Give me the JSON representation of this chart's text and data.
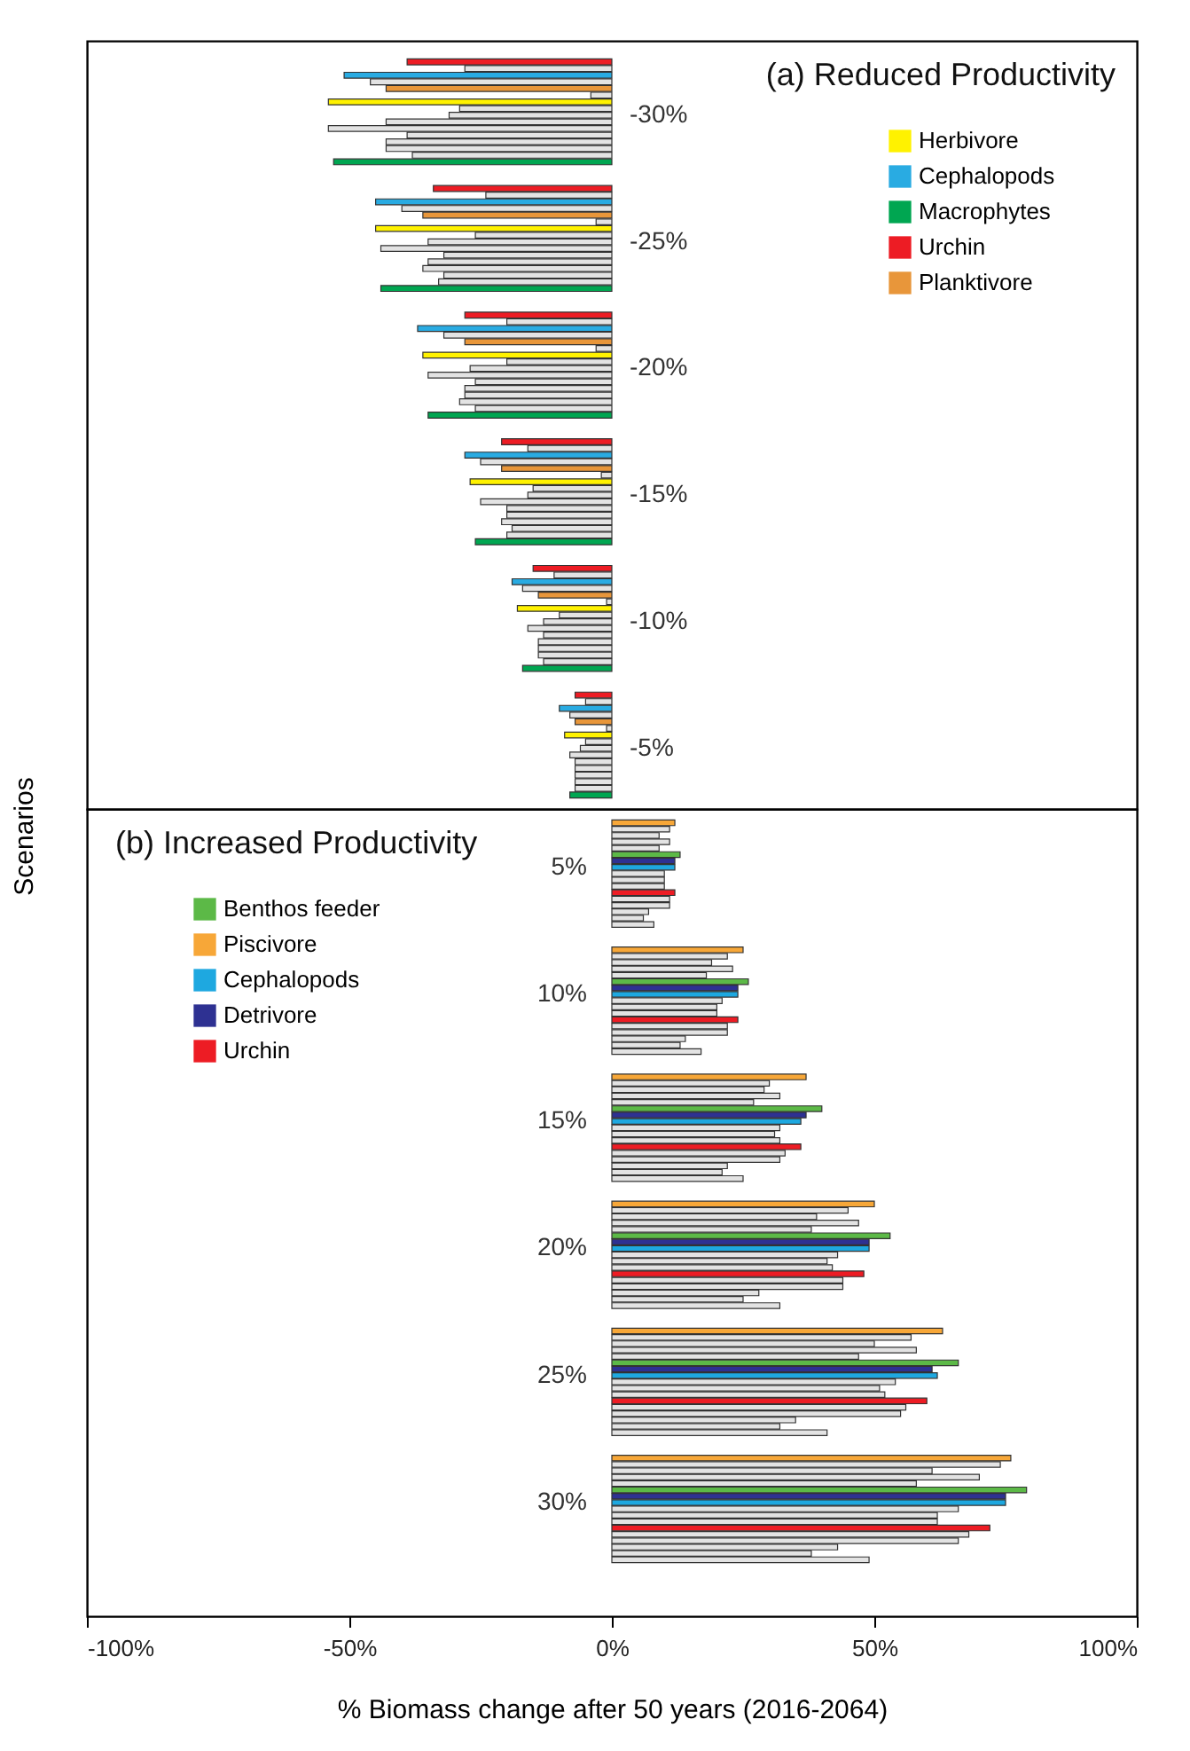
{
  "chart_data": [
    {
      "type": "bar",
      "orientation": "horizontal",
      "title": "(a) Reduced Productivity",
      "ylabel": "Scenarios",
      "xlim": [
        -100,
        100
      ],
      "tick_labels": false,
      "legend": "top right",
      "categories": [
        null,
        null,
        null,
        null,
        null,
        null,
        null,
        null,
        "-30%",
        null,
        null,
        null,
        null,
        null,
        null,
        null,
        null,
        null,
        null,
        null,
        null,
        null,
        null,
        null,
        null,
        null,
        null,
        "-25%",
        null,
        null,
        null,
        null,
        null,
        null,
        null,
        null,
        null,
        null,
        null,
        null,
        null,
        null,
        null,
        null,
        null,
        null,
        "-20%",
        null,
        null,
        null,
        null,
        null,
        null,
        null,
        null,
        null,
        null,
        null,
        null,
        null,
        null,
        null,
        null,
        null,
        null,
        "-15%",
        null,
        null,
        null,
        null,
        null,
        null,
        null,
        null,
        null,
        null,
        null,
        null,
        null,
        null,
        null,
        null,
        null,
        null,
        "-10%",
        null,
        null,
        null,
        null,
        null,
        null,
        null,
        null,
        null,
        null,
        null,
        null,
        null,
        null,
        null,
        null,
        null,
        null,
        "-5%",
        null,
        null,
        null,
        null,
        null,
        null,
        null
      ],
      "series": [
        {
          "name": "Herbivore",
          "color": "#fff200",
          "values": [
            null,
            null,
            null,
            null,
            null,
            null,
            -54,
            null,
            null,
            null,
            null,
            null,
            null,
            null,
            null,
            null,
            null,
            null,
            null,
            null,
            null,
            null,
            null,
            null,
            null,
            -45,
            null,
            null,
            null,
            null,
            null,
            null,
            null,
            null,
            null,
            null,
            null,
            null,
            null,
            null,
            null,
            null,
            null,
            null,
            -36,
            null,
            null,
            null,
            null,
            null,
            null,
            null,
            null,
            null,
            null,
            null,
            null,
            null,
            null,
            null,
            null,
            null,
            null,
            -27,
            null,
            null,
            null,
            null,
            null,
            null,
            null,
            null,
            null,
            null,
            null,
            null,
            null,
            null,
            null,
            null,
            null,
            null,
            -18,
            null,
            null,
            null,
            null,
            null,
            null,
            null,
            null,
            null,
            null,
            null,
            null,
            null,
            null,
            null,
            null,
            null,
            null,
            -9,
            null,
            null,
            null,
            null,
            null,
            null,
            null,
            null,
            null
          ]
        },
        {
          "name": "Cephalopods",
          "color": "#29abe2",
          "values": [
            null,
            null,
            -51,
            null,
            null,
            null,
            null,
            null,
            null,
            null,
            null,
            null,
            null,
            null,
            null,
            null,
            null,
            null,
            null,
            null,
            null,
            -45,
            null,
            null,
            null,
            null,
            null,
            null,
            null,
            null,
            null,
            null,
            null,
            null,
            null,
            null,
            null,
            null,
            null,
            null,
            -37,
            null,
            null,
            null,
            null,
            null,
            null,
            null,
            null,
            null,
            null,
            null,
            null,
            null,
            null,
            null,
            null,
            null,
            null,
            -28,
            null,
            null,
            null,
            null,
            null,
            null,
            null,
            null,
            null,
            null,
            null,
            null,
            null,
            null,
            null,
            null,
            null,
            null,
            -19,
            null,
            null,
            null,
            null,
            null,
            null,
            null,
            null,
            null,
            null,
            null,
            null,
            null,
            null,
            null,
            null,
            null,
            null,
            -10,
            null,
            null,
            null,
            null,
            null,
            null,
            null,
            null,
            null,
            null,
            null,
            null,
            null
          ]
        },
        {
          "name": "Macrophytes",
          "color": "#00a651",
          "values": [
            null,
            null,
            null,
            null,
            null,
            null,
            null,
            null,
            null,
            null,
            null,
            null,
            null,
            null,
            null,
            -53,
            null,
            null,
            null,
            null,
            null,
            null,
            null,
            null,
            null,
            null,
            null,
            null,
            null,
            null,
            null,
            null,
            null,
            null,
            -44,
            null,
            null,
            null,
            null,
            null,
            null,
            null,
            null,
            null,
            null,
            null,
            null,
            null,
            null,
            null,
            null,
            null,
            null,
            -35,
            null,
            null,
            null,
            null,
            null,
            null,
            null,
            null,
            null,
            null,
            null,
            null,
            null,
            null,
            null,
            null,
            null,
            null,
            -26,
            null,
            null,
            null,
            null,
            null,
            null,
            null,
            null,
            null,
            null,
            null,
            null,
            null,
            null,
            null,
            null,
            null,
            null,
            -17,
            null,
            null,
            null,
            null,
            null,
            null,
            null,
            null,
            null,
            null,
            null,
            null,
            null,
            null,
            null,
            null,
            null,
            null,
            -8
          ]
        },
        {
          "name": "Urchin",
          "color": "#ed1c24",
          "values": [
            -39,
            null,
            null,
            null,
            null,
            null,
            null,
            null,
            null,
            null,
            null,
            null,
            null,
            null,
            null,
            null,
            null,
            null,
            null,
            -34,
            null,
            null,
            null,
            null,
            null,
            null,
            null,
            null,
            null,
            null,
            null,
            null,
            null,
            null,
            null,
            null,
            null,
            null,
            -28,
            null,
            null,
            null,
            null,
            null,
            null,
            null,
            null,
            null,
            null,
            null,
            null,
            null,
            null,
            null,
            null,
            null,
            null,
            -21,
            null,
            null,
            null,
            null,
            null,
            null,
            null,
            null,
            null,
            null,
            null,
            null,
            null,
            null,
            null,
            null,
            null,
            null,
            -15,
            null,
            null,
            null,
            null,
            null,
            null,
            null,
            null,
            null,
            null,
            null,
            null,
            null,
            null,
            null,
            null,
            null,
            null,
            -7,
            null,
            null,
            null,
            null,
            null,
            null,
            null,
            null,
            null,
            null,
            null,
            null,
            null,
            null,
            null
          ]
        },
        {
          "name": "Planktivore",
          "color": "#e8963a",
          "values": [
            null,
            null,
            null,
            null,
            -43,
            null,
            null,
            null,
            null,
            null,
            null,
            null,
            null,
            null,
            null,
            null,
            null,
            null,
            null,
            null,
            null,
            null,
            null,
            -36,
            null,
            null,
            null,
            null,
            null,
            null,
            null,
            null,
            null,
            null,
            null,
            null,
            null,
            null,
            null,
            null,
            null,
            null,
            -28,
            null,
            null,
            null,
            null,
            null,
            null,
            null,
            null,
            null,
            null,
            null,
            null,
            null,
            null,
            null,
            null,
            null,
            null,
            -21,
            null,
            null,
            null,
            null,
            null,
            null,
            null,
            null,
            null,
            null,
            null,
            null,
            null,
            null,
            null,
            null,
            null,
            null,
            -14,
            null,
            null,
            null,
            null,
            null,
            null,
            null,
            null,
            null,
            null,
            null,
            null,
            null,
            null,
            null,
            null,
            null,
            null,
            -7,
            null,
            null,
            null,
            null,
            null,
            null,
            null,
            null,
            null,
            null,
            null
          ]
        },
        {
          "color": "#e3e3e3",
          "values": [
            null,
            -28,
            null,
            -46,
            null,
            -4,
            null,
            -29,
            -31,
            -43,
            -54,
            -39,
            -43,
            -43,
            -38,
            null,
            null,
            null,
            null,
            null,
            -24,
            null,
            -40,
            null,
            -3,
            null,
            -26,
            -35,
            -44,
            -32,
            -35,
            -36,
            -32,
            -33,
            null,
            null,
            null,
            null,
            null,
            -20,
            null,
            -32,
            null,
            -3,
            null,
            -20,
            -27,
            -35,
            -26,
            -28,
            -28,
            -29,
            -26,
            null,
            null,
            null,
            null,
            null,
            -16,
            null,
            -25,
            null,
            -2,
            null,
            -15,
            -16,
            -25,
            -20,
            -20,
            -21,
            -19,
            -20,
            null,
            null,
            null,
            null,
            null,
            -11,
            null,
            -17,
            null,
            -1,
            null,
            -10,
            -13,
            -16,
            -13,
            -14,
            -14,
            -14,
            -13,
            null,
            null,
            null,
            null,
            null,
            -5,
            null,
            -8,
            null,
            -1,
            null,
            -5,
            -6,
            -8,
            -7,
            -7,
            -7,
            -7,
            -7,
            null
          ]
        }
      ]
    },
    {
      "type": "bar",
      "orientation": "horizontal",
      "title": "(b) Increased Productivity",
      "xlabel": "% Biomass change after 50 years (2016-2064)",
      "xlim": [
        -100,
        100
      ],
      "xticks": [
        {
          "value": -100,
          "label": "-100%"
        },
        {
          "value": -50,
          "label": "-50%"
        },
        {
          "value": 0,
          "label": "0%"
        },
        {
          "value": 50,
          "label": "50%"
        },
        {
          "value": 100,
          "label": "100%"
        }
      ],
      "tick_labels": "x",
      "legend": "top left",
      "categories": [
        null,
        null,
        null,
        null,
        null,
        null,
        null,
        "5%",
        null,
        null,
        null,
        null,
        null,
        null,
        null,
        null,
        null,
        null,
        null,
        null,
        null,
        null,
        null,
        null,
        null,
        null,
        null,
        "10%",
        null,
        null,
        null,
        null,
        null,
        null,
        null,
        null,
        null,
        null,
        null,
        null,
        null,
        null,
        null,
        null,
        null,
        null,
        null,
        "15%",
        null,
        null,
        null,
        null,
        null,
        null,
        null,
        null,
        null,
        null,
        null,
        null,
        null,
        null,
        null,
        null,
        null,
        null,
        null,
        "20%",
        null,
        null,
        null,
        null,
        null,
        null,
        null,
        null,
        null,
        null,
        null,
        null,
        null,
        null,
        null,
        null,
        null,
        null,
        null,
        "25%",
        null,
        null,
        null,
        null,
        null,
        null,
        null,
        null,
        null,
        null,
        null,
        null,
        null,
        null,
        null,
        null,
        null,
        null,
        null,
        "30%",
        null,
        null,
        null,
        null,
        null,
        null,
        null,
        null,
        null
      ],
      "series": [
        {
          "name": "Benthos feeder",
          "color": "#5cb947",
          "values": [
            null,
            null,
            null,
            null,
            null,
            13,
            null,
            null,
            null,
            null,
            null,
            null,
            null,
            null,
            null,
            null,
            null,
            null,
            null,
            null,
            null,
            null,
            null,
            null,
            null,
            26,
            null,
            null,
            null,
            null,
            null,
            null,
            null,
            null,
            null,
            null,
            null,
            null,
            null,
            null,
            null,
            null,
            null,
            null,
            null,
            40,
            null,
            null,
            null,
            null,
            null,
            null,
            null,
            null,
            null,
            null,
            null,
            null,
            null,
            null,
            null,
            null,
            null,
            null,
            null,
            53,
            null,
            null,
            null,
            null,
            null,
            null,
            null,
            null,
            null,
            null,
            null,
            null,
            null,
            null,
            null,
            null,
            null,
            null,
            null,
            66,
            null,
            null,
            null,
            null,
            null,
            null,
            null,
            null,
            null,
            null,
            null,
            null,
            null,
            null,
            null,
            null,
            null,
            null,
            null,
            79,
            null,
            null,
            null,
            null,
            null,
            null,
            null,
            null,
            null,
            null,
            null
          ]
        },
        {
          "name": "Piscivore",
          "color": "#f7a738",
          "values": [
            12,
            null,
            null,
            null,
            null,
            null,
            null,
            null,
            null,
            null,
            null,
            null,
            null,
            null,
            null,
            null,
            null,
            null,
            null,
            null,
            25,
            null,
            null,
            null,
            null,
            null,
            null,
            null,
            null,
            null,
            null,
            null,
            null,
            null,
            null,
            null,
            null,
            null,
            null,
            null,
            37,
            null,
            null,
            null,
            null,
            null,
            null,
            null,
            null,
            null,
            null,
            null,
            null,
            null,
            null,
            null,
            null,
            null,
            null,
            null,
            50,
            null,
            null,
            null,
            null,
            null,
            null,
            null,
            null,
            null,
            null,
            null,
            null,
            null,
            null,
            null,
            null,
            null,
            null,
            null,
            63,
            null,
            null,
            null,
            null,
            null,
            null,
            null,
            null,
            null,
            null,
            null,
            null,
            null,
            null,
            null,
            null,
            null,
            null,
            null,
            76,
            null,
            null,
            null,
            null,
            null,
            null,
            null,
            null,
            null,
            null,
            null,
            null,
            null,
            null,
            null,
            null
          ]
        },
        {
          "name": "Cephalopods",
          "color": "#1ea8e0",
          "values": [
            null,
            null,
            null,
            null,
            null,
            null,
            null,
            12,
            null,
            null,
            null,
            null,
            null,
            null,
            null,
            null,
            null,
            null,
            null,
            null,
            null,
            null,
            null,
            null,
            null,
            null,
            null,
            24,
            null,
            null,
            null,
            null,
            null,
            null,
            null,
            null,
            null,
            null,
            null,
            null,
            null,
            null,
            null,
            null,
            null,
            null,
            null,
            36,
            null,
            null,
            null,
            null,
            null,
            null,
            null,
            null,
            null,
            null,
            null,
            null,
            null,
            null,
            null,
            null,
            null,
            null,
            null,
            49,
            null,
            null,
            null,
            null,
            null,
            null,
            null,
            null,
            null,
            null,
            null,
            null,
            null,
            null,
            null,
            null,
            null,
            null,
            null,
            62,
            null,
            null,
            null,
            null,
            null,
            null,
            null,
            null,
            null,
            null,
            null,
            null,
            null,
            null,
            null,
            null,
            null,
            null,
            null,
            75,
            null,
            null,
            null,
            null,
            null,
            null,
            null,
            null,
            null
          ]
        },
        {
          "name": "Detrivore",
          "color": "#2e3192",
          "values": [
            null,
            null,
            null,
            null,
            null,
            null,
            12,
            null,
            null,
            null,
            null,
            null,
            null,
            null,
            null,
            null,
            null,
            null,
            null,
            null,
            null,
            null,
            null,
            null,
            null,
            null,
            24,
            null,
            null,
            null,
            null,
            null,
            null,
            null,
            null,
            null,
            null,
            null,
            null,
            null,
            null,
            null,
            null,
            null,
            null,
            null,
            37,
            null,
            null,
            null,
            null,
            null,
            null,
            null,
            null,
            null,
            null,
            null,
            null,
            null,
            null,
            null,
            null,
            null,
            null,
            null,
            49,
            null,
            null,
            null,
            null,
            null,
            null,
            null,
            null,
            null,
            null,
            null,
            null,
            null,
            null,
            null,
            null,
            null,
            null,
            null,
            61,
            null,
            null,
            null,
            null,
            null,
            null,
            null,
            null,
            null,
            null,
            null,
            null,
            null,
            null,
            null,
            null,
            null,
            null,
            null,
            75,
            null,
            null,
            null,
            null,
            null,
            null,
            null,
            null,
            null,
            null
          ]
        },
        {
          "name": "Urchin",
          "color": "#ed1c24",
          "values": [
            null,
            null,
            null,
            null,
            null,
            null,
            null,
            null,
            null,
            null,
            null,
            12,
            null,
            null,
            null,
            null,
            null,
            null,
            null,
            null,
            null,
            null,
            null,
            null,
            null,
            null,
            null,
            null,
            null,
            null,
            null,
            24,
            null,
            null,
            null,
            null,
            null,
            null,
            null,
            null,
            null,
            null,
            null,
            null,
            null,
            null,
            null,
            null,
            null,
            null,
            null,
            36,
            null,
            null,
            null,
            null,
            null,
            null,
            null,
            null,
            null,
            null,
            null,
            null,
            null,
            null,
            null,
            null,
            null,
            null,
            null,
            48,
            null,
            null,
            null,
            null,
            null,
            null,
            null,
            null,
            null,
            null,
            null,
            null,
            null,
            null,
            null,
            null,
            null,
            null,
            null,
            60,
            null,
            null,
            null,
            null,
            null,
            null,
            null,
            null,
            null,
            null,
            null,
            null,
            null,
            null,
            null,
            null,
            null,
            null,
            null,
            72,
            null,
            null,
            null,
            null,
            null
          ]
        },
        {
          "color": "#e3e3e3",
          "values": [
            null,
            11,
            9,
            11,
            9,
            null,
            null,
            null,
            10,
            10,
            10,
            null,
            11,
            11,
            7,
            6,
            8,
            null,
            null,
            null,
            null,
            22,
            19,
            23,
            18,
            null,
            null,
            null,
            21,
            20,
            20,
            null,
            22,
            22,
            14,
            13,
            17,
            null,
            null,
            null,
            null,
            30,
            29,
            32,
            27,
            null,
            null,
            null,
            32,
            31,
            32,
            null,
            33,
            32,
            22,
            21,
            25,
            null,
            null,
            null,
            null,
            45,
            39,
            47,
            38,
            null,
            null,
            null,
            43,
            41,
            42,
            null,
            44,
            44,
            28,
            25,
            32,
            null,
            null,
            null,
            null,
            57,
            50,
            58,
            47,
            null,
            null,
            null,
            54,
            51,
            52,
            null,
            56,
            55,
            35,
            32,
            41,
            null,
            null,
            null,
            null,
            74,
            61,
            70,
            58,
            null,
            null,
            null,
            66,
            62,
            62,
            null,
            68,
            66,
            43,
            38,
            49
          ]
        }
      ]
    }
  ]
}
